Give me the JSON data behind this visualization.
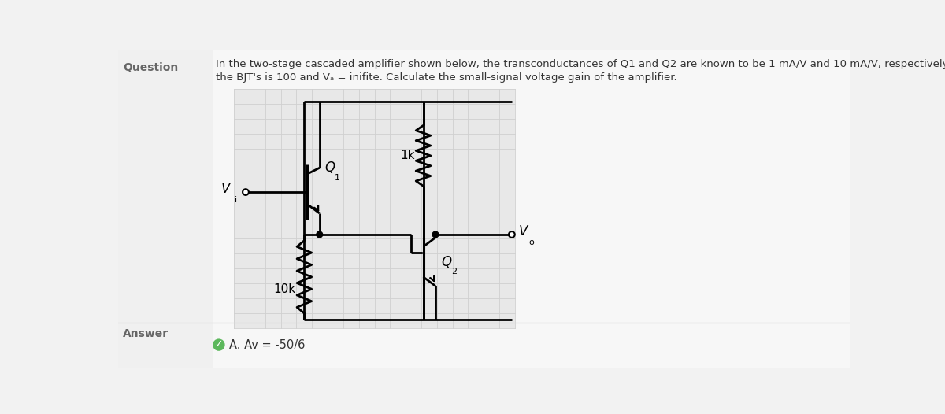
{
  "bg_color": "#f2f2f2",
  "circuit_bg": "#e8e8e8",
  "grid_color": "#cccccc",
  "line_color": "#000000",
  "question_label": "Question",
  "answer_label": "Answer",
  "question_text_line1": "In the two-stage cascaded amplifier shown below, the transconductances of Q1 and Q2 are known to be 1 mA/V and 10 mA/V, respectively. The beta of",
  "question_text_line2": "the BJT's is 100 and Vₐ = inifite. Calculate the small-signal voltage gain of the amplifier.",
  "answer_text": "A. Av = -50/6",
  "label_Vi": "V",
  "label_Vi_sub": "i",
  "label_Vo": "V",
  "label_Vo_sub": "o",
  "label_Q1": "Q",
  "label_Q1_sub": "1",
  "label_Q2": "Q",
  "label_Q2_sub": "2",
  "label_1k": "1k",
  "label_10k": "10k"
}
